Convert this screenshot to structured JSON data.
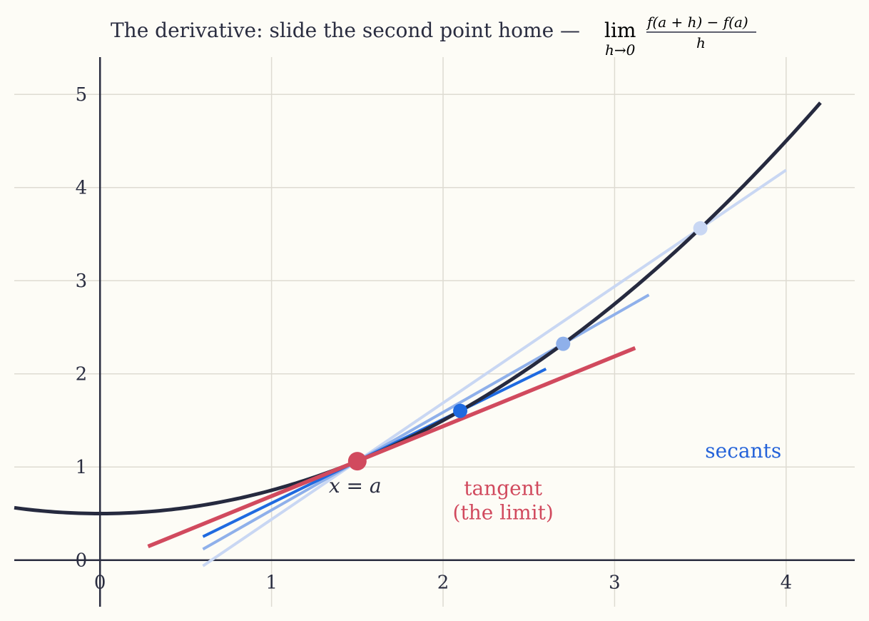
{
  "chart_data": {
    "type": "line",
    "title": "The derivative: slide the second point home —",
    "title_math": {
      "lim": "lim",
      "lim_sub": "h→0",
      "numerator": "f(a + h) − f(a)",
      "denominator": "h"
    },
    "xlim": [
      -0.5,
      4.4
    ],
    "ylim": [
      -0.5,
      5.4
    ],
    "x_ticks": [
      0,
      1,
      2,
      3,
      4
    ],
    "y_ticks": [
      0,
      1,
      2,
      3,
      4,
      5
    ],
    "x_tick_labels": [
      "0",
      "1",
      "2",
      "3",
      "4"
    ],
    "y_tick_labels": [
      "0",
      "1",
      "2",
      "3",
      "4",
      "5"
    ],
    "grid": true,
    "curve": {
      "formula": "0.25*x^2 + 0.5",
      "x_range": [
        -0.5,
        4.2
      ],
      "color": "#262a3f"
    },
    "point_a": {
      "x": 1.5,
      "y": 1.0625,
      "label": "x = a",
      "color": "#d14a5e"
    },
    "secants": [
      {
        "x2": 3.5,
        "y2": 3.5625,
        "x_range": [
          0.6,
          4.0
        ],
        "color": "#c9d7f3"
      },
      {
        "x2": 2.7,
        "y2": 2.3225,
        "x_range": [
          0.6,
          3.2
        ],
        "color": "#8fb0ea"
      },
      {
        "x2": 2.1,
        "y2": 1.6025,
        "x_range": [
          0.6,
          2.6
        ],
        "color": "#1f6ae0"
      }
    ],
    "tangent": {
      "slope": 0.75,
      "x_range": [
        0.28,
        3.12
      ],
      "color": "#d14a5e"
    },
    "annotations": {
      "secants": {
        "text": "secants",
        "x": 3.75,
        "y": 1.1,
        "color": "#2563d9"
      },
      "tangent_line1": {
        "text": "tangent",
        "x": 2.35,
        "y": 0.7,
        "color": "#d14a5e"
      },
      "tangent_line2": {
        "text": "(the limit)",
        "x": 2.35,
        "y": 0.44,
        "color": "#d14a5e"
      }
    }
  }
}
